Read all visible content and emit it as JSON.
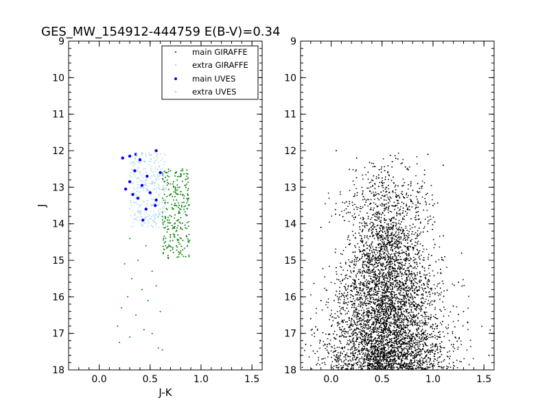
{
  "figure": {
    "title": "GES_MW_154912-444759 E(B-V)=0.34"
  },
  "chart_data": [
    {
      "type": "scatter",
      "panel": "left",
      "xlabel": "J-K",
      "ylabel": "J",
      "xlim": [
        -0.3,
        1.6
      ],
      "ylim": [
        18,
        9
      ],
      "y_inverted": true,
      "x_ticks": [
        "0.0",
        "0.5",
        "1.0",
        "1.5"
      ],
      "y_ticks": [
        "9",
        "10",
        "11",
        "12",
        "13",
        "14",
        "15",
        "16",
        "17",
        "18"
      ],
      "legend": {
        "placement": "top-right",
        "entries": [
          "main GIRAFFE",
          "extra GIRAFFE",
          "main UVES",
          "extra UVES"
        ]
      },
      "series": [
        {
          "name": "main GIRAFFE",
          "color": "#008000",
          "marker": "small-dot",
          "distribution": "red clump / RGB column J-K 0.62-0.88, J 12.5-15.0; sparse sequence J-K 0.2-0.65, J 14.3-17.5",
          "points": [
            [
              0.66,
              12.6
            ],
            [
              0.7,
              12.55
            ],
            [
              0.75,
              12.6
            ],
            [
              0.82,
              12.55
            ],
            [
              0.86,
              12.7
            ],
            [
              0.68,
              12.9
            ],
            [
              0.73,
              12.85
            ],
            [
              0.79,
              13.0
            ],
            [
              0.84,
              12.95
            ],
            [
              0.88,
              13.3
            ],
            [
              0.7,
              13.2
            ],
            [
              0.76,
              13.35
            ],
            [
              0.81,
              13.5
            ],
            [
              0.72,
              13.6
            ],
            [
              0.78,
              13.7
            ],
            [
              0.67,
              13.9
            ],
            [
              0.74,
              14.0
            ],
            [
              0.8,
              14.1
            ],
            [
              0.7,
              14.3
            ],
            [
              0.77,
              14.45
            ],
            [
              0.65,
              14.6
            ],
            [
              0.72,
              14.7
            ],
            [
              0.79,
              14.8
            ],
            [
              0.85,
              14.9
            ],
            [
              0.68,
              14.95
            ],
            [
              0.3,
              14.4
            ],
            [
              0.46,
              14.6
            ],
            [
              0.38,
              15.0
            ],
            [
              0.25,
              15.1
            ],
            [
              0.52,
              15.3
            ],
            [
              0.32,
              15.5
            ],
            [
              0.42,
              15.8
            ],
            [
              0.56,
              15.7
            ],
            [
              0.28,
              16.0
            ],
            [
              0.48,
              16.1
            ],
            [
              0.22,
              16.3
            ],
            [
              0.36,
              16.5
            ],
            [
              0.6,
              16.4
            ],
            [
              0.18,
              16.8
            ],
            [
              0.44,
              16.9
            ],
            [
              0.3,
              17.1
            ],
            [
              0.52,
              17.0
            ],
            [
              0.2,
              17.25
            ],
            [
              0.58,
              17.4
            ],
            [
              0.62,
              17.45
            ]
          ]
        },
        {
          "name": "extra GIRAFFE",
          "color": "#add8e6",
          "marker": "small-dot",
          "distribution": "dense cloud J-K 0.3-0.65, J 12.1-14.1",
          "points": [
            [
              0.35,
              12.2
            ],
            [
              0.42,
              12.1
            ],
            [
              0.5,
              12.3
            ],
            [
              0.38,
              12.5
            ],
            [
              0.46,
              12.6
            ],
            [
              0.55,
              12.7
            ],
            [
              0.33,
              12.9
            ],
            [
              0.4,
              13.0
            ],
            [
              0.48,
              13.1
            ],
            [
              0.58,
              13.2
            ],
            [
              0.36,
              13.3
            ],
            [
              0.44,
              13.4
            ],
            [
              0.52,
              13.5
            ],
            [
              0.6,
              13.6
            ],
            [
              0.39,
              13.7
            ],
            [
              0.47,
              13.8
            ],
            [
              0.55,
              13.85
            ],
            [
              0.42,
              13.95
            ],
            [
              0.3,
              13.6
            ],
            [
              0.63,
              13.0
            ]
          ]
        },
        {
          "name": "main UVES",
          "color": "#0000ff",
          "marker": "dot",
          "points": [
            [
              0.23,
              12.2
            ],
            [
              0.3,
              12.15
            ],
            [
              0.36,
              12.1
            ],
            [
              0.56,
              12.0
            ],
            [
              0.4,
              12.25
            ],
            [
              0.6,
              12.6
            ],
            [
              0.35,
              12.55
            ],
            [
              0.47,
              12.7
            ],
            [
              0.3,
              12.85
            ],
            [
              0.42,
              12.95
            ],
            [
              0.26,
              13.05
            ],
            [
              0.5,
              13.15
            ],
            [
              0.38,
              13.3
            ],
            [
              0.56,
              13.35
            ],
            [
              0.46,
              13.6
            ],
            [
              0.43,
              13.9
            ],
            [
              0.55,
              13.5
            ],
            [
              0.33,
              13.2
            ]
          ]
        },
        {
          "name": "extra UVES",
          "color": "#add8e6",
          "marker": "dot",
          "points": [
            [
              0.37,
              12.1
            ],
            [
              0.45,
              12.3
            ],
            [
              0.52,
              12.9
            ],
            [
              0.4,
              13.5
            ],
            [
              0.58,
              13.8
            ]
          ]
        }
      ]
    },
    {
      "type": "scatter",
      "panel": "right",
      "xlabel": "",
      "ylabel": "",
      "xlim": [
        -0.3,
        1.6
      ],
      "ylim": [
        18,
        9
      ],
      "y_inverted": true,
      "x_ticks": [
        "0.0",
        "0.5",
        "1.0",
        "1.5"
      ],
      "y_ticks": [
        "9",
        "10",
        "11",
        "12",
        "13",
        "14",
        "15",
        "16",
        "17",
        "18"
      ],
      "series": [
        {
          "color": "#000000",
          "marker": "small-dot",
          "distribution": "field stars: dense plume centered J-K ~0.55 widening toward J=18, sparse J 12-14 spread J-K 0.2-1.0, scattered outliers -0.3 to 1.6",
          "points": [
            [
              0.05,
              12.0
            ],
            [
              0.25,
              12.2
            ],
            [
              0.95,
              12.1
            ],
            [
              1.1,
              12.4
            ],
            [
              0.6,
              12.3
            ],
            [
              0.4,
              12.8
            ],
            [
              0.85,
              12.9
            ],
            [
              0.15,
              13.4
            ],
            [
              0.7,
              13.2
            ],
            [
              1.0,
              13.5
            ],
            [
              -0.1,
              14.1
            ],
            [
              0.3,
              14.4
            ],
            [
              0.9,
              14.6
            ],
            [
              1.1,
              15.0
            ],
            [
              0.05,
              15.2
            ],
            [
              1.25,
              15.6
            ],
            [
              -0.1,
              16.1
            ],
            [
              1.3,
              16.4
            ],
            [
              -0.2,
              16.6
            ],
            [
              1.6,
              17.0
            ],
            [
              -0.25,
              17.3
            ],
            [
              1.55,
              17.6
            ],
            [
              -0.3,
              17.6
            ],
            [
              1.2,
              17.8
            ]
          ]
        }
      ]
    }
  ]
}
